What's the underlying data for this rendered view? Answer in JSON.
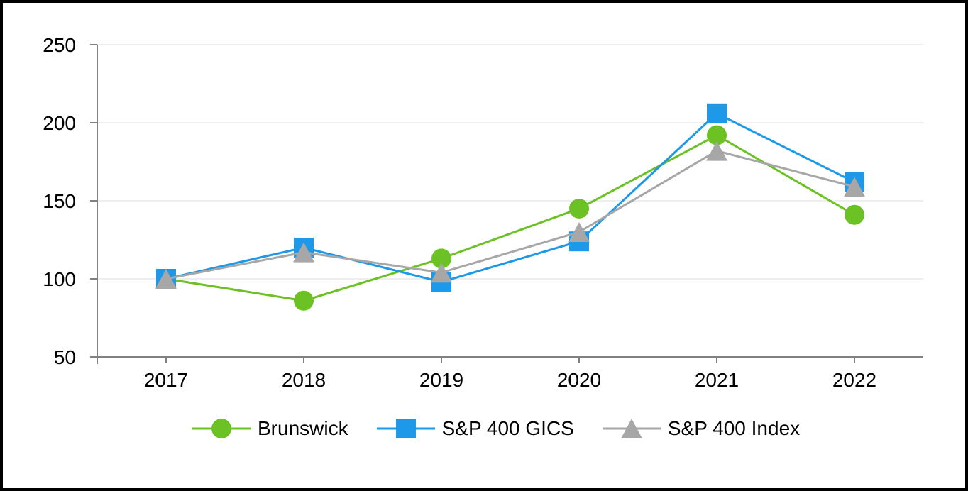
{
  "chart_data": {
    "type": "line",
    "title": "",
    "xlabel": "",
    "ylabel": "",
    "categories": [
      "2017",
      "2018",
      "2019",
      "2020",
      "2021",
      "2022"
    ],
    "series": [
      {
        "name": "Brunswick",
        "marker": "circle",
        "color": "#6CC125",
        "values": [
          100,
          86,
          113,
          145,
          192,
          141
        ]
      },
      {
        "name": "S&P 400 GICS",
        "marker": "square",
        "color": "#1E98E8",
        "values": [
          100,
          120,
          98,
          124,
          206,
          162
        ]
      },
      {
        "name": "S&P 400 Index",
        "marker": "triangle",
        "color": "#A7A7A7",
        "values": [
          100,
          117,
          104,
          130,
          182,
          159
        ]
      }
    ],
    "y_ticks": [
      50,
      100,
      150,
      200,
      250
    ],
    "ylim": [
      50,
      250
    ],
    "grid": "horizontal",
    "legend_position": "bottom"
  },
  "colors": {
    "axis": "#808080",
    "gridline": "#E8E8E8",
    "text": "#000000",
    "background": "#FFFFFF",
    "frame_border": "#000000"
  }
}
